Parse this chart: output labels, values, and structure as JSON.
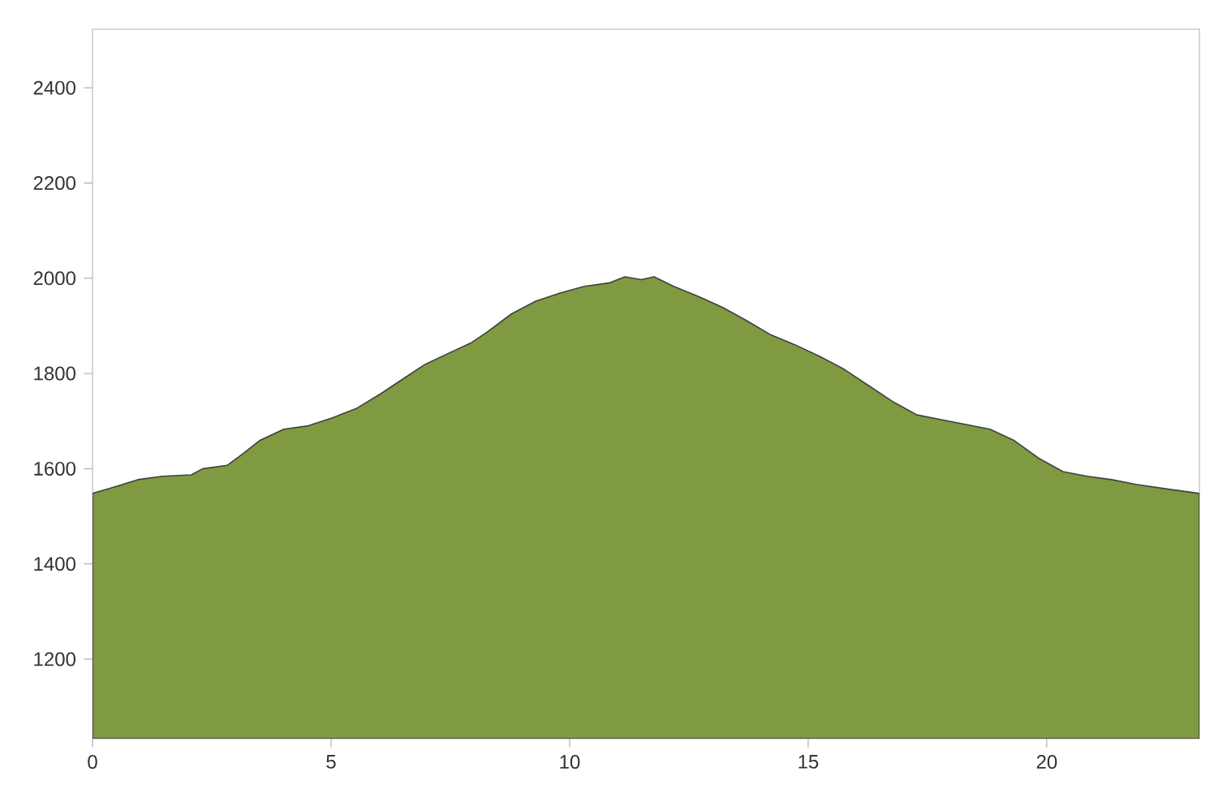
{
  "chart_data": {
    "type": "area",
    "color": "#7f9a40",
    "x": [
      0,
      0.44,
      0.95,
      1.46,
      2.07,
      2.31,
      2.82,
      3.16,
      3.5,
      4.01,
      4.52,
      5.03,
      5.54,
      6.05,
      6.56,
      6.97,
      7.41,
      7.93,
      8.27,
      8.78,
      9.29,
      9.8,
      10.31,
      10.82,
      11.16,
      11.5,
      11.77,
      12.18,
      12.69,
      13.2,
      13.71,
      14.22,
      14.73,
      15.24,
      15.75,
      16.26,
      16.77,
      17.28,
      17.79,
      18.3,
      18.81,
      19.32,
      19.83,
      20.34,
      20.85,
      21.36,
      21.87,
      22.55,
      23.2
    ],
    "values": [
      1548,
      1561,
      1577,
      1584,
      1587,
      1600,
      1607,
      1632,
      1659,
      1683,
      1690,
      1707,
      1727,
      1758,
      1792,
      1819,
      1840,
      1864,
      1887,
      1925,
      1952,
      1969,
      1983,
      1990,
      2003,
      1997,
      2003,
      1983,
      1962,
      1939,
      1911,
      1881,
      1860,
      1836,
      1809,
      1775,
      1741,
      1713,
      1703,
      1693,
      1683,
      1659,
      1622,
      1594,
      1584,
      1577,
      1567,
      1557,
      1548
    ],
    "xlim": [
      0,
      23.2
    ],
    "ylim": [
      1033,
      2523
    ],
    "xticks": [
      0,
      5,
      10,
      15,
      20
    ],
    "yticks": [
      1200,
      1400,
      1600,
      1800,
      2000,
      2200,
      2400
    ],
    "grid": false
  }
}
